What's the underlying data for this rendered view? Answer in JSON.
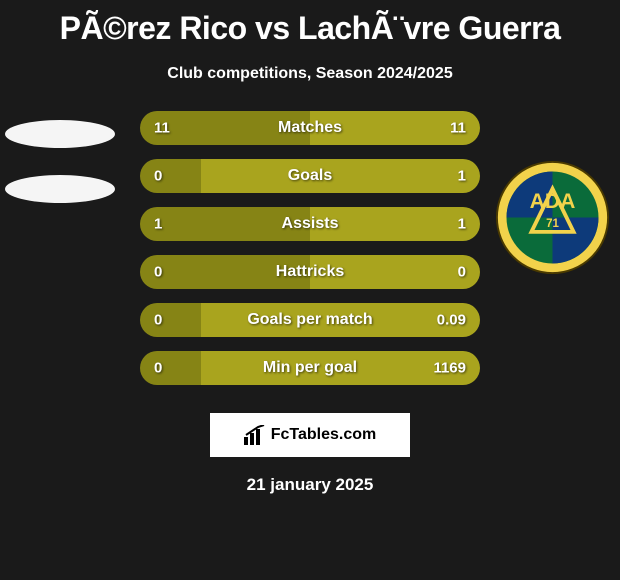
{
  "header": {
    "title": "PÃ©rez Rico vs LachÃ¨vre Guerra",
    "subtitle": "Club competitions, Season 2024/2025"
  },
  "colors": {
    "left_bar": "#868415",
    "right_bar": "#a9a41e",
    "background": "#1a1a1a",
    "text": "#ffffff",
    "brand_box_bg": "#ffffff",
    "brand_text": "#000000",
    "badge_bg": "#f5f5f5"
  },
  "bar_style": {
    "height": 34,
    "border_radius": 17,
    "container_width": 340,
    "label_fontsize": 16,
    "value_fontsize": 15,
    "row_gap": 14
  },
  "stats": [
    {
      "label": "Matches",
      "left_value": "11",
      "right_value": "11",
      "left_pct": 50,
      "right_pct": 50
    },
    {
      "label": "Goals",
      "left_value": "0",
      "right_value": "1",
      "left_pct": 18,
      "right_pct": 82
    },
    {
      "label": "Assists",
      "left_value": "1",
      "right_value": "1",
      "left_pct": 50,
      "right_pct": 50
    },
    {
      "label": "Hattricks",
      "left_value": "0",
      "right_value": "0",
      "left_pct": 50,
      "right_pct": 50
    },
    {
      "label": "Goals per match",
      "left_value": "0",
      "right_value": "0.09",
      "left_pct": 18,
      "right_pct": 82
    },
    {
      "label": "Min per goal",
      "left_value": "0",
      "right_value": "1169",
      "left_pct": 18,
      "right_pct": 82
    }
  ],
  "brand": {
    "text": "FcTables.com"
  },
  "date": "21 january 2025",
  "club_badge": {
    "outer_ring": "#f2d24b",
    "inner_stripe_green": "#0a6b3a",
    "inner_stripe_blue": "#0d3a7a",
    "text": "ADA",
    "sub": "71",
    "triangle": "#f2d24b"
  }
}
